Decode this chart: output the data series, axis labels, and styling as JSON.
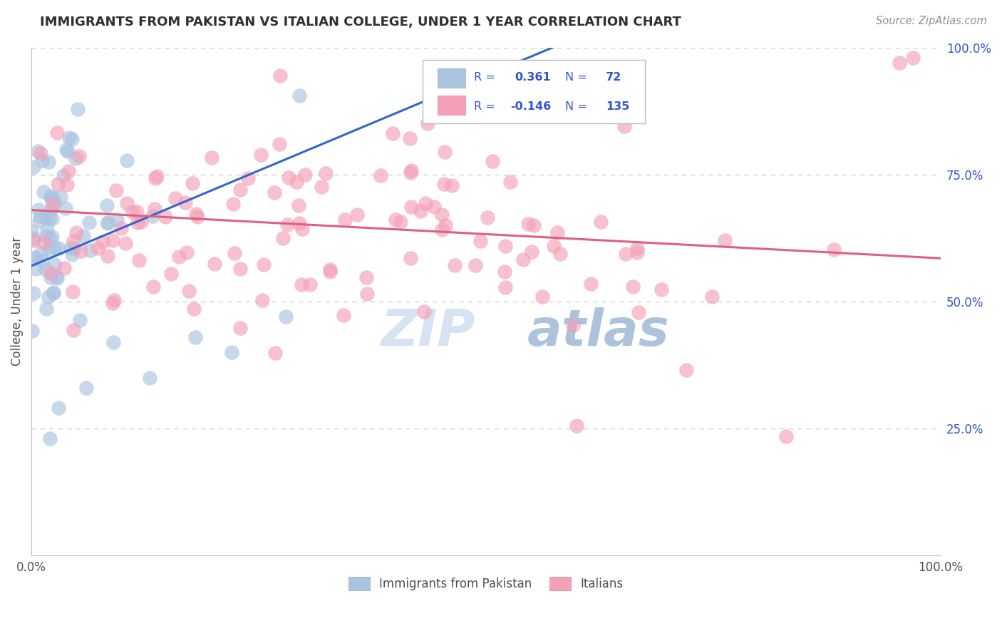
{
  "title": "IMMIGRANTS FROM PAKISTAN VS ITALIAN COLLEGE, UNDER 1 YEAR CORRELATION CHART",
  "source": "Source: ZipAtlas.com",
  "ylabel": "College, Under 1 year",
  "xlim": [
    0.0,
    1.0
  ],
  "ylim": [
    0.0,
    1.0
  ],
  "R_blue": 0.361,
  "N_blue": 72,
  "R_pink": -0.146,
  "N_pink": 135,
  "blue_color": "#aac4e0",
  "pink_color": "#f4a0b8",
  "blue_line_color": "#3366cc",
  "pink_line_color": "#e06080",
  "background_color": "#ffffff",
  "grid_color": "#cccccc",
  "title_color": "#303030",
  "legend_text_color": "#3355cc",
  "blue_line": [
    0.0,
    0.57,
    1.0,
    1.1
  ],
  "pink_line": [
    0.0,
    0.68,
    1.0,
    0.585
  ]
}
